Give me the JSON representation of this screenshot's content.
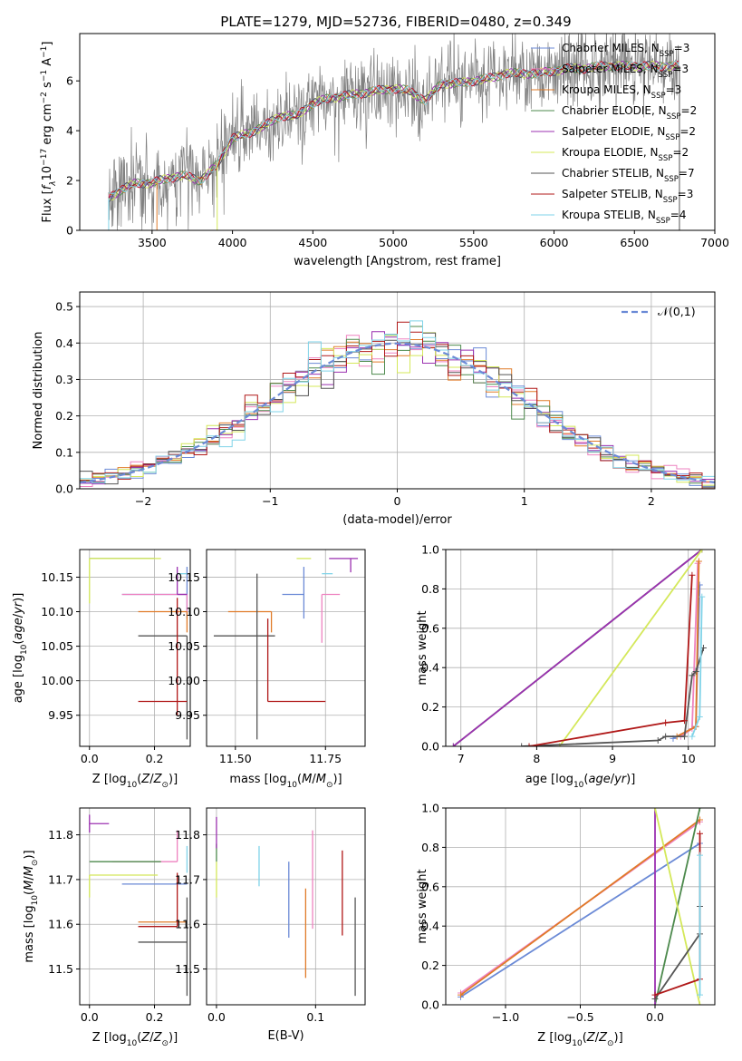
{
  "figure_title": "PLATE=1279, MJD=52736, FIBERID=0480, z=0.349",
  "models": [
    {
      "name": "Chabrier MILES",
      "nssp": "3",
      "color": "#6b8ad6"
    },
    {
      "name": "Salpeter MILES",
      "nssp": "3",
      "color": "#ee82c0"
    },
    {
      "name": "Kroupa MILES",
      "nssp": "3",
      "color": "#e07b28"
    },
    {
      "name": "Chabrier ELODIE",
      "nssp": "2",
      "color": "#4d8a4d"
    },
    {
      "name": "Salpeter ELODIE",
      "nssp": "2",
      "color": "#9b30b0"
    },
    {
      "name": "Kroupa ELODIE",
      "nssp": "2",
      "color": "#d4e85a"
    },
    {
      "name": "Chabrier STELIB",
      "nssp": "7",
      "color": "#555555"
    },
    {
      "name": "Salpeter STELIB",
      "nssp": "3",
      "color": "#b01818"
    },
    {
      "name": "Kroupa STELIB",
      "nssp": "4",
      "color": "#7fd3e8"
    }
  ],
  "chart_data": [
    {
      "id": "spectrum",
      "type": "line",
      "xlabel": "wavelength [Angstrom, rest frame]",
      "ylabel": "Flux [f_λ 10^-17 erg cm^-2 s^-1 A^-1]",
      "xlim": [
        3050,
        7000
      ],
      "ylim": [
        0,
        7.9
      ],
      "xticks": [
        3500,
        4000,
        4500,
        5000,
        5500,
        6000,
        6500,
        7000
      ],
      "yticks": [
        0,
        2,
        4,
        6
      ],
      "observed_color": "#808080",
      "continuum": [
        [
          3230,
          1.3
        ],
        [
          3300,
          1.6
        ],
        [
          3400,
          1.9
        ],
        [
          3500,
          1.9
        ],
        [
          3600,
          2.1
        ],
        [
          3700,
          2.2
        ],
        [
          3800,
          2.0
        ],
        [
          3900,
          2.6
        ],
        [
          4000,
          3.7
        ],
        [
          4100,
          3.9
        ],
        [
          4200,
          4.2
        ],
        [
          4300,
          4.6
        ],
        [
          4400,
          4.6
        ],
        [
          4500,
          5.1
        ],
        [
          4600,
          5.3
        ],
        [
          4700,
          5.4
        ],
        [
          4800,
          5.5
        ],
        [
          4900,
          5.6
        ],
        [
          5000,
          5.7
        ],
        [
          5100,
          5.6
        ],
        [
          5200,
          5.2
        ],
        [
          5300,
          5.9
        ],
        [
          5400,
          5.9
        ],
        [
          5500,
          6.0
        ],
        [
          5600,
          6.1
        ],
        [
          5700,
          6.3
        ],
        [
          5800,
          6.3
        ],
        [
          5900,
          6.3
        ],
        [
          6000,
          6.4
        ],
        [
          6100,
          6.5
        ],
        [
          6200,
          6.5
        ],
        [
          6300,
          6.6
        ],
        [
          6400,
          6.6
        ],
        [
          6500,
          6.6
        ],
        [
          6600,
          6.6
        ],
        [
          6700,
          6.6
        ],
        [
          6780,
          6.6
        ]
      ]
    },
    {
      "id": "residuals",
      "type": "histogram",
      "xlabel": "(data-model)/error",
      "ylabel": "Normed distribution",
      "xlim": [
        -2.5,
        2.5
      ],
      "ylim": [
        0,
        0.54
      ],
      "xticks": [
        -2,
        -1,
        0,
        1,
        2
      ],
      "yticks": [
        0.0,
        0.1,
        0.2,
        0.3,
        0.4,
        0.5
      ],
      "bin_width": 0.1,
      "reference": {
        "label": "𝒩(0,1)",
        "mu": 0,
        "sigma": 1,
        "color": "#6b8ad6"
      },
      "grid": true
    },
    {
      "id": "age_vs_Z",
      "type": "errorbar",
      "xlabel": "Z [log10(Z/Z⊙)]",
      "ylabel": "age [log10(age/yr)]",
      "xlim": [
        -0.03,
        0.31
      ],
      "ylim": [
        9.905,
        10.19
      ],
      "xticks": [
        0.0,
        0.2
      ],
      "yticks": [
        9.95,
        10.0,
        10.05,
        10.1,
        10.15
      ],
      "points": [
        {
          "model": 0,
          "x": 0.3,
          "xerr": [
            0.2,
            0.0
          ],
          "y": 10.125,
          "yerr": [
            0.035,
            0.04
          ]
        },
        {
          "model": 1,
          "x": 0.3,
          "xerr": [
            0.2,
            0.0
          ],
          "y": 10.125,
          "yerr": [
            0.03,
            0.0
          ]
        },
        {
          "model": 2,
          "x": 0.3,
          "xerr": [
            0.15,
            0.0
          ],
          "y": 10.1,
          "yerr": [
            0.03,
            0.0
          ]
        },
        {
          "model": 3,
          "x": 0.0,
          "xerr": [
            0.0,
            0.2
          ],
          "y": 10.177,
          "yerr": [
            0.0,
            0.0
          ]
        },
        {
          "model": 4,
          "x": 0.27,
          "xerr": [
            0.0,
            0.03
          ],
          "y": 10.125,
          "yerr": [
            0.0,
            0.04
          ]
        },
        {
          "model": 5,
          "x": 0.0,
          "xerr": [
            0.0,
            0.22
          ],
          "y": 10.177,
          "yerr": [
            0.065,
            0.0
          ]
        },
        {
          "model": 6,
          "x": 0.3,
          "xerr": [
            0.15,
            0.0
          ],
          "y": 10.065,
          "yerr": [
            0.15,
            0.0
          ]
        },
        {
          "model": 7,
          "x": 0.27,
          "xerr": [
            0.12,
            0.03
          ],
          "y": 9.97,
          "yerr": [
            0.02,
            0.15
          ]
        },
        {
          "model": 8,
          "x": 0.3,
          "xerr": [
            0.03,
            0.0
          ],
          "y": 10.155,
          "yerr": [
            0.0,
            0.0
          ]
        }
      ]
    },
    {
      "id": "age_vs_mass",
      "type": "errorbar",
      "xlabel": "mass [log10(M/M⊙)]",
      "ylabel": "",
      "xlim": [
        11.42,
        11.86
      ],
      "ylim": [
        9.905,
        10.19
      ],
      "xticks": [
        11.5,
        11.75
      ],
      "yticks": [
        9.95,
        10.0,
        10.05,
        10.1,
        10.15
      ],
      "points": [
        {
          "model": 0,
          "x": 11.69,
          "xerr": [
            0.06,
            0.0
          ],
          "y": 10.125,
          "yerr": [
            0.035,
            0.04
          ]
        },
        {
          "model": 1,
          "x": 11.74,
          "xerr": [
            0.0,
            0.05
          ],
          "y": 10.125,
          "yerr": [
            0.07,
            0.0
          ]
        },
        {
          "model": 2,
          "x": 11.6,
          "xerr": [
            0.12,
            0.0
          ],
          "y": 10.1,
          "yerr": [
            0.03,
            0.0
          ]
        },
        {
          "model": 3,
          "x": 11.74,
          "xerr": [
            0.0,
            0.0
          ],
          "y": 10.177,
          "yerr": [
            0.0,
            0.0
          ]
        },
        {
          "model": 4,
          "x": 11.82,
          "xerr": [
            0.06,
            0.02
          ],
          "y": 10.177,
          "yerr": [
            0.02,
            0.0
          ]
        },
        {
          "model": 5,
          "x": 11.71,
          "xerr": [
            0.04,
            0.0
          ],
          "y": 10.177,
          "yerr": [
            0.0,
            0.0
          ]
        },
        {
          "model": 6,
          "x": 11.56,
          "xerr": [
            0.12,
            0.05
          ],
          "y": 10.065,
          "yerr": [
            0.15,
            0.09
          ]
        },
        {
          "model": 7,
          "x": 11.59,
          "xerr": [
            0.0,
            0.16
          ],
          "y": 9.97,
          "yerr": [
            0.0,
            0.12
          ]
        },
        {
          "model": 8,
          "x": 11.77,
          "xerr": [
            0.03,
            0.0
          ],
          "y": 10.155,
          "yerr": [
            0.0,
            0.0
          ]
        }
      ]
    },
    {
      "id": "cum_age",
      "type": "line",
      "xlabel": "age [log10(age/yr)]",
      "ylabel": "mass weight",
      "xlim": [
        6.8,
        10.35
      ],
      "ylim": [
        0,
        1
      ],
      "xticks": [
        7,
        8,
        9,
        10
      ],
      "yticks": [
        0.0,
        0.2,
        0.4,
        0.6,
        0.8,
        1.0
      ],
      "series": [
        {
          "model": 0,
          "x": [
            9.8,
            10.1,
            10.15
          ],
          "y": [
            0.04,
            0.1,
            0.82
          ]
        },
        {
          "model": 1,
          "x": [
            9.9,
            10.05,
            10.125
          ],
          "y": [
            0.05,
            0.09,
            0.93
          ]
        },
        {
          "model": 2,
          "x": [
            9.85,
            10.1,
            10.14
          ],
          "y": [
            0.05,
            0.1,
            0.94
          ]
        },
        {
          "model": 3,
          "x": [
            6.9,
            10.18
          ],
          "y": [
            0.0,
            1.0
          ]
        },
        {
          "model": 4,
          "x": [
            6.9,
            10.18
          ],
          "y": [
            0.0,
            1.0
          ]
        },
        {
          "model": 5,
          "x": [
            8.3,
            10.18
          ],
          "y": [
            0.0,
            1.0
          ]
        },
        {
          "model": 6,
          "x": [
            7.8,
            9.6,
            9.7,
            9.95,
            10.05,
            10.1,
            10.2
          ],
          "y": [
            0.0,
            0.03,
            0.05,
            0.05,
            0.36,
            0.38,
            0.5
          ]
        },
        {
          "model": 7,
          "x": [
            7.9,
            9.7,
            9.95,
            10.05
          ],
          "y": [
            0.0,
            0.12,
            0.13,
            0.87
          ]
        },
        {
          "model": 8,
          "x": [
            10.05,
            10.15,
            10.18
          ],
          "y": [
            0.05,
            0.15,
            0.76
          ]
        }
      ]
    },
    {
      "id": "mass_vs_Z",
      "type": "errorbar",
      "xlabel": "Z [log10(Z/Z⊙)]",
      "ylabel": "mass [log10(M/M⊙)]",
      "xlim": [
        -0.03,
        0.31
      ],
      "ylim": [
        11.42,
        11.86
      ],
      "xticks": [
        0.0,
        0.2
      ],
      "yticks": [
        11.5,
        11.6,
        11.7,
        11.8
      ],
      "points": [
        {
          "model": 0,
          "x": 0.3,
          "xerr": [
            0.2,
            0.0
          ],
          "y": 11.69,
          "yerr": [
            0.0,
            0.0
          ]
        },
        {
          "model": 1,
          "x": 0.27,
          "xerr": [
            0.2,
            0.0
          ],
          "y": 11.74,
          "yerr": [
            0.0,
            0.07
          ]
        },
        {
          "model": 2,
          "x": 0.3,
          "xerr": [
            0.15,
            0.0
          ],
          "y": 11.605,
          "yerr": [
            0.0,
            0.0
          ]
        },
        {
          "model": 3,
          "x": 0.0,
          "xerr": [
            0.0,
            0.22
          ],
          "y": 11.74,
          "yerr": [
            0.0,
            0.0
          ]
        },
        {
          "model": 4,
          "x": 0.0,
          "xerr": [
            0.0,
            0.06
          ],
          "y": 11.825,
          "yerr": [
            0.02,
            0.02
          ]
        },
        {
          "model": 5,
          "x": 0.0,
          "xerr": [
            0.0,
            0.21
          ],
          "y": 11.71,
          "yerr": [
            0.05,
            0.0
          ]
        },
        {
          "model": 6,
          "x": 0.3,
          "xerr": [
            0.15,
            0.0
          ],
          "y": 11.56,
          "yerr": [
            0.12,
            0.1
          ]
        },
        {
          "model": 7,
          "x": 0.27,
          "xerr": [
            0.12,
            0.0
          ],
          "y": 11.595,
          "yerr": [
            0.0,
            0.12
          ]
        },
        {
          "model": 8,
          "x": 0.3,
          "xerr": [
            0.0,
            0.0
          ],
          "y": 11.745,
          "yerr": [
            0.03,
            0.03
          ]
        }
      ]
    },
    {
      "id": "mass_vs_EBV",
      "type": "errorbar",
      "xlabel": "E(B-V)",
      "ylabel": "",
      "xlim": [
        -0.01,
        0.15
      ],
      "ylim": [
        11.42,
        11.86
      ],
      "xticks": [
        0.0,
        0.1
      ],
      "yticks": [
        11.5,
        11.6,
        11.7,
        11.8
      ],
      "points": [
        {
          "model": 0,
          "x": 0.073,
          "xerr": [
            0.0,
            0.0
          ],
          "y": 11.655,
          "yerr": [
            0.085,
            0.085
          ]
        },
        {
          "model": 1,
          "x": 0.097,
          "xerr": [
            0.0,
            0.0
          ],
          "y": 11.7,
          "yerr": [
            0.11,
            0.11
          ]
        },
        {
          "model": 2,
          "x": 0.09,
          "xerr": [
            0.0,
            0.0
          ],
          "y": 11.58,
          "yerr": [
            0.1,
            0.1
          ]
        },
        {
          "model": 3,
          "x": 0.0,
          "xerr": [
            0.0,
            0.0
          ],
          "y": 11.76,
          "yerr": [
            0.02,
            0.02
          ]
        },
        {
          "model": 4,
          "x": 0.0,
          "xerr": [
            0.0,
            0.0
          ],
          "y": 11.805,
          "yerr": [
            0.035,
            0.035
          ]
        },
        {
          "model": 5,
          "x": 0.0,
          "xerr": [
            0.0,
            0.0
          ],
          "y": 11.7,
          "yerr": [
            0.04,
            0.04
          ]
        },
        {
          "model": 6,
          "x": 0.14,
          "xerr": [
            0.0,
            0.0
          ],
          "y": 11.55,
          "yerr": [
            0.11,
            0.11
          ]
        },
        {
          "model": 7,
          "x": 0.127,
          "xerr": [
            0.0,
            0.0
          ],
          "y": 11.67,
          "yerr": [
            0.095,
            0.095
          ]
        },
        {
          "model": 8,
          "x": 0.043,
          "xerr": [
            0.0,
            0.0
          ],
          "y": 11.73,
          "yerr": [
            0.045,
            0.045
          ]
        }
      ]
    },
    {
      "id": "cum_Z",
      "type": "line",
      "xlabel": "Z [log10(Z/Z⊙)]",
      "ylabel": "mass weight",
      "xlim": [
        -1.4,
        0.4
      ],
      "ylim": [
        0,
        1
      ],
      "xticks": [
        -1.0,
        -0.5,
        0.0
      ],
      "yticks": [
        0.0,
        0.2,
        0.4,
        0.6,
        0.8,
        1.0
      ],
      "series": [
        {
          "model": 0,
          "x": [
            -1.3,
            0.3
          ],
          "y": [
            0.04,
            0.82
          ]
        },
        {
          "model": 1,
          "x": [
            -1.3,
            0.3
          ],
          "y": [
            0.06,
            0.93
          ]
        },
        {
          "model": 2,
          "x": [
            -1.3,
            0.3
          ],
          "y": [
            0.05,
            0.94
          ]
        },
        {
          "model": 3,
          "x": [
            0.0,
            0.3
          ],
          "y": [
            0.0,
            1.0
          ]
        },
        {
          "model": 4,
          "x": [
            0.0,
            0.0
          ],
          "y": [
            0.0,
            1.0
          ]
        },
        {
          "model": 5,
          "x": [
            0.0,
            0.3
          ],
          "y": [
            1.0,
            0.0
          ]
        },
        {
          "model": 6,
          "x": [
            0.0,
            0.3,
            0.3
          ],
          "y": [
            0.03,
            0.36,
            0.5
          ]
        },
        {
          "model": 7,
          "x": [
            0.0,
            0.3,
            0.3
          ],
          "y": [
            0.05,
            0.13,
            0.87
          ]
        },
        {
          "model": 8,
          "x": [
            0.3,
            0.3
          ],
          "y": [
            0.05,
            0.76
          ]
        }
      ]
    }
  ]
}
